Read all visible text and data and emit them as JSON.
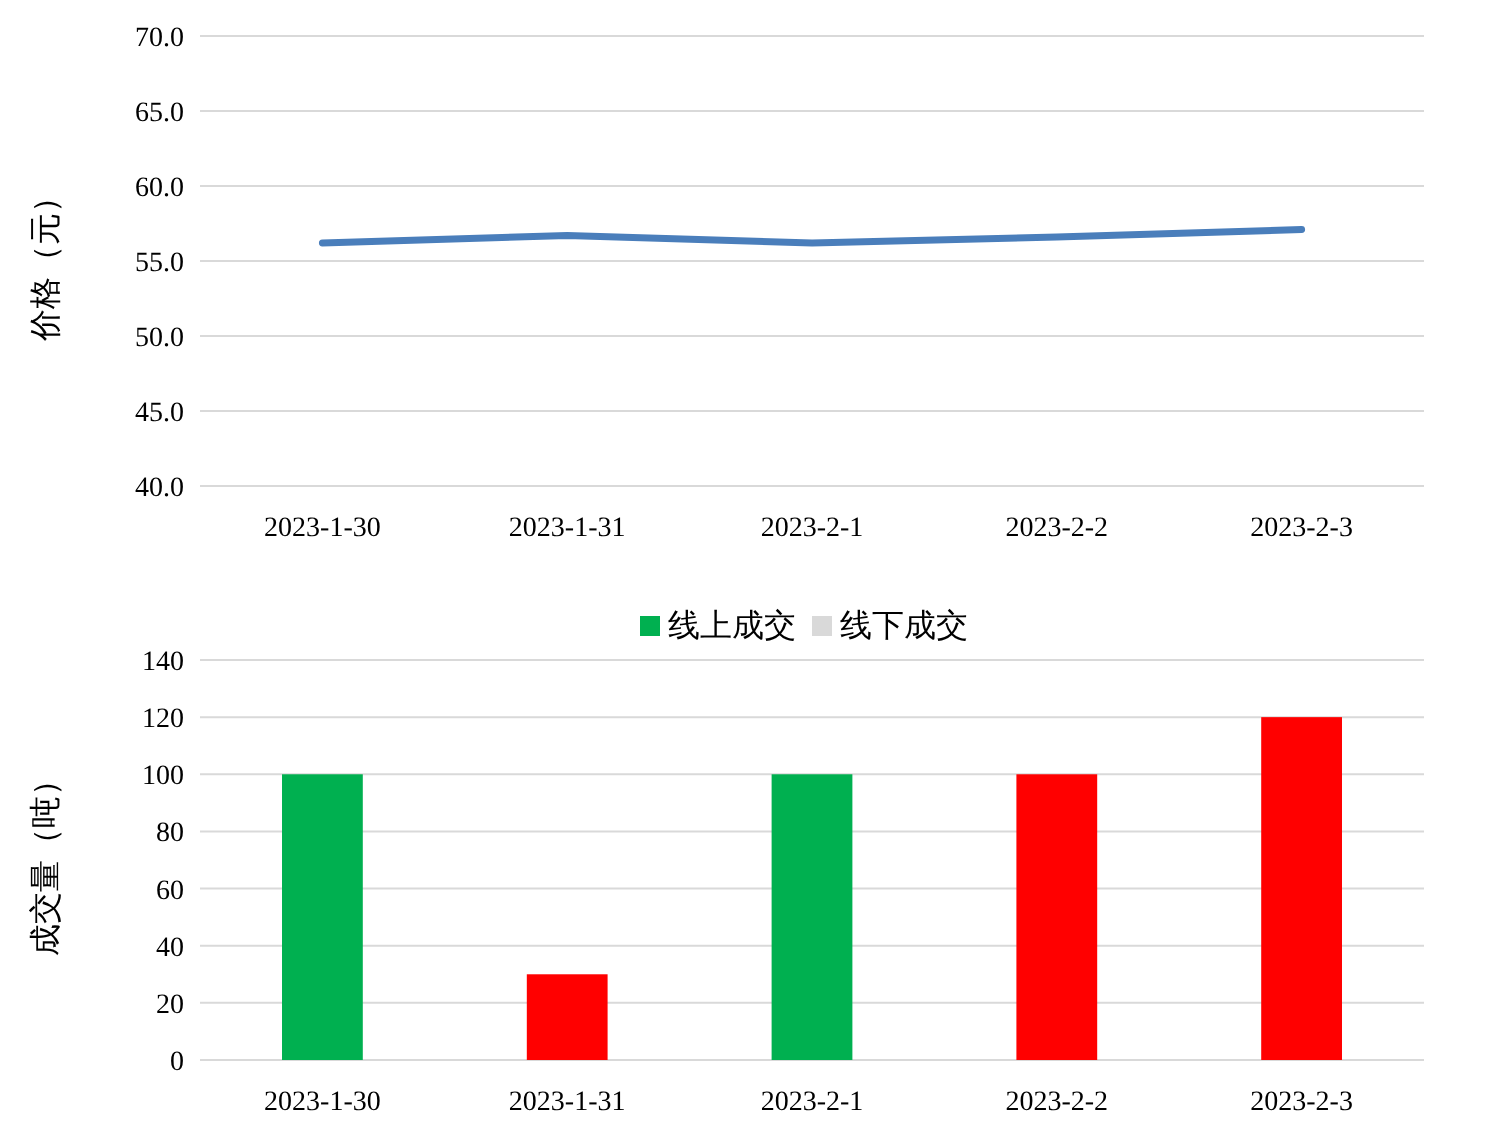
{
  "chart_data": [
    {
      "type": "line",
      "ylabel": "价格（元）",
      "categories": [
        "2023-1-30",
        "2023-1-31",
        "2023-2-1",
        "2023-2-2",
        "2023-2-3"
      ],
      "series": [
        {
          "color": "#4a7ebb",
          "values": [
            56.2,
            56.7,
            56.2,
            56.6,
            57.1
          ]
        }
      ],
      "ylim": [
        40,
        70
      ],
      "yticks": [
        {
          "value": 40,
          "label": "40.0"
        },
        {
          "value": 45,
          "label": "45.0"
        },
        {
          "value": 50,
          "label": "50.0"
        },
        {
          "value": 55,
          "label": "55.0"
        },
        {
          "value": 60,
          "label": "60.0"
        },
        {
          "value": 65,
          "label": "65.0"
        },
        {
          "value": 70,
          "label": "70.0"
        }
      ],
      "grid": "y",
      "legend": false,
      "marker": "none",
      "line_style": "solid"
    },
    {
      "type": "bar",
      "stacked": true,
      "ylabel": "成交量（吨）",
      "categories": [
        "2023-1-30",
        "2023-1-31",
        "2023-2-1",
        "2023-2-2",
        "2023-2-3"
      ],
      "series": [
        {
          "name": "线上成交",
          "color": "#00b050",
          "colors": [
            "#00b050",
            "#ff0000",
            "#00b050",
            "#ff0000",
            "#ff0000"
          ],
          "values": [
            100,
            30,
            100,
            100,
            120
          ]
        },
        {
          "name": "线下成交",
          "color": "#d9d9d9",
          "values": [
            null,
            null,
            null,
            null,
            null
          ]
        }
      ],
      "ylim": [
        0,
        140
      ],
      "yticks": [
        0,
        20,
        40,
        60,
        80,
        100,
        120,
        140
      ],
      "grid": "y",
      "legend": "top"
    }
  ]
}
